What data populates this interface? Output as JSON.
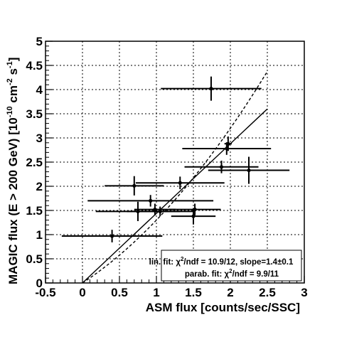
{
  "chart_data": {
    "type": "scatter",
    "xlabel": "ASM flux [counts/sec/SSC]",
    "ylabel_main": "MAGIC flux (E > 200 GeV) [10",
    "ylabel_exp1": "-10",
    "ylabel_mid": " cm",
    "ylabel_exp2": "-2",
    "ylabel_end": " s",
    "ylabel_exp3": "-1",
    "ylabel_close": "]",
    "xlim": [
      -0.5,
      3
    ],
    "ylim": [
      0,
      5
    ],
    "grid": true,
    "x_ticks": [
      "-0.5",
      "0",
      "0.5",
      "1",
      "1.5",
      "2",
      "2.5",
      "3"
    ],
    "y_ticks": [
      "0",
      "0.5",
      "1",
      "1.5",
      "2",
      "2.5",
      "3",
      "3.5",
      "4",
      "4.5",
      "5"
    ],
    "points": [
      {
        "x": 0.4,
        "y": 0.97,
        "xerr": 0.68,
        "yerr": 0.13
      },
      {
        "x": 0.7,
        "y": 2.01,
        "xerr": 0.4,
        "yerr": 0.2
      },
      {
        "x": 0.75,
        "y": 1.48,
        "xerr": 0.57,
        "yerr": 0.2
      },
      {
        "x": 0.92,
        "y": 1.7,
        "xerr": 0.85,
        "yerr": 0.12
      },
      {
        "x": 0.98,
        "y": 1.52,
        "xerr": 0.28,
        "yerr": 0.12
      },
      {
        "x": 1.05,
        "y": 1.48,
        "xerr": 0.45,
        "yerr": 0.1
      },
      {
        "x": 1.32,
        "y": 2.07,
        "xerr": 0.6,
        "yerr": 0.13
      },
      {
        "x": 1.5,
        "y": 1.38,
        "xerr": 0.3,
        "yerr": 0.17
      },
      {
        "x": 1.52,
        "y": 1.52,
        "xerr": 0.35,
        "yerr": 0.12
      },
      {
        "x": 1.74,
        "y": 4.02,
        "xerr": 0.68,
        "yerr": 0.25
      },
      {
        "x": 1.88,
        "y": 2.4,
        "xerr": 0.5,
        "yerr": 0.13
      },
      {
        "x": 1.95,
        "y": 2.78,
        "xerr": 0.6,
        "yerr": 0.13
      },
      {
        "x": 1.97,
        "y": 2.88,
        "xerr": 0.05,
        "yerr": 0.15
      },
      {
        "x": 2.25,
        "y": 2.33,
        "xerr": 0.55,
        "yerr": 0.28
      }
    ],
    "series": [
      {
        "fit": "linear",
        "style": "solid",
        "slope": 1.44,
        "intercept": 0,
        "x_range": [
          0,
          2.5
        ]
      },
      {
        "fit": "parabolic",
        "style": "dashed",
        "a": 1.0,
        "b": 0.3,
        "x_range": [
          0,
          2.5
        ]
      }
    ],
    "legend": {
      "position": "bottom-right",
      "line1_a": "lin. fit: ",
      "line1_chi": "χ",
      "line1_sup": "2",
      "line1_b": "/ndf = 10.9/12, slope=1.4±0.1",
      "line2_a": "parab. fit: ",
      "line2_chi": "χ",
      "line2_sup": "2",
      "line2_b": "/ndf = 9.9/11"
    }
  }
}
